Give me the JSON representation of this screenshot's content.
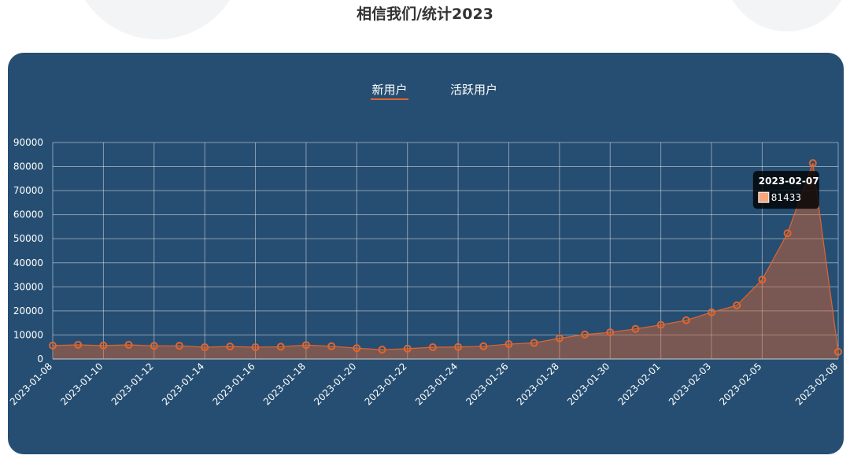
{
  "chart_data": {
    "type": "line",
    "title": "相信我们/统计2023",
    "tabs": [
      "新用户",
      "活跃用户"
    ],
    "selected_tab": 0,
    "categories": [
      "2023-01-08",
      null,
      "2023-01-10",
      null,
      "2023-01-12",
      null,
      "2023-01-14",
      null,
      "2023-01-16",
      null,
      "2023-01-18",
      null,
      "2023-01-20",
      null,
      "2023-01-22",
      null,
      "2023-01-24",
      null,
      "2023-01-26",
      null,
      "2023-01-28",
      null,
      "2023-01-30",
      null,
      "2023-02-01",
      null,
      "2023-02-03",
      null,
      "2023-02-05",
      null,
      null,
      "2023-02-08"
    ],
    "series": [
      {
        "color": "#e0652f",
        "values": [
          5600,
          5900,
          5600,
          5900,
          5500,
          5500,
          4900,
          5200,
          4900,
          5100,
          5800,
          5300,
          4500,
          3900,
          4300,
          4900,
          5000,
          5300,
          6200,
          6700,
          8600,
          10200,
          11100,
          12500,
          14200,
          16100,
          19400,
          22300,
          33000,
          52300,
          81433,
          3000
        ]
      }
    ],
    "ylim": [
      0,
      90000
    ],
    "yticks": [
      0,
      10000,
      20000,
      30000,
      40000,
      50000,
      60000,
      70000,
      80000,
      90000
    ],
    "grid": true,
    "tooltip": {
      "title": "2023-02-07",
      "value": 81433
    }
  }
}
